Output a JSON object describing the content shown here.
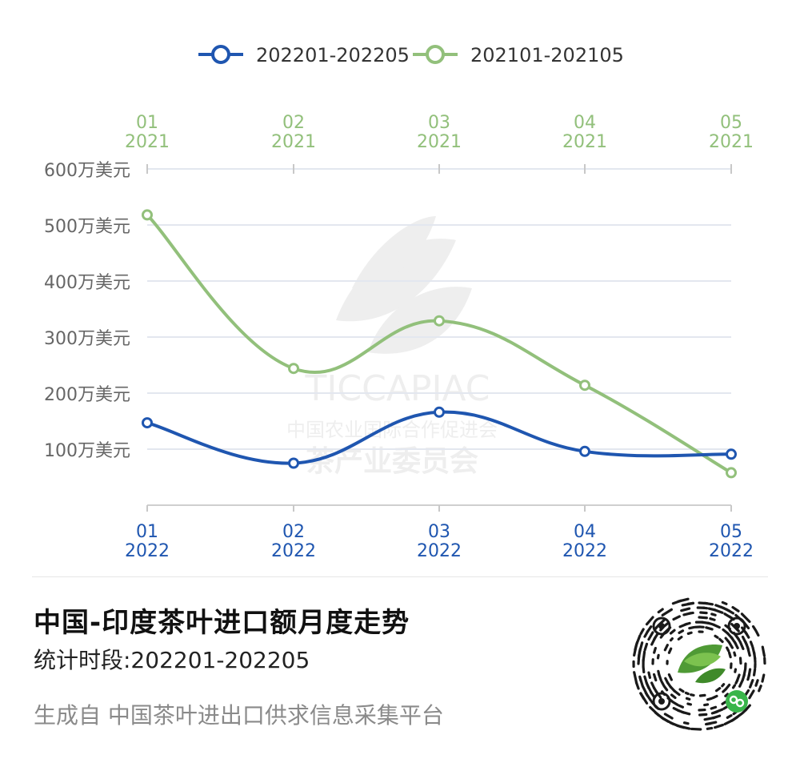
{
  "chart_data": {
    "type": "line",
    "title": "中国-印度茶叶进口额月度走势",
    "subtitle": "统计时段:202201-202205",
    "ylim": [
      0,
      600
    ],
    "y_ticks": [
      100,
      200,
      300,
      400,
      500,
      600
    ],
    "y_tick_labels": [
      "100万美元",
      "200万美元",
      "300万美元",
      "400万美元",
      "500万美元",
      "600万美元"
    ],
    "grid": true,
    "legend_position": "top-center",
    "series": [
      {
        "name": "202201-202205",
        "color": "#1f56b0",
        "axis": "bottom",
        "x_labels": [
          [
            "01",
            "2022"
          ],
          [
            "02",
            "2022"
          ],
          [
            "03",
            "2022"
          ],
          [
            "04",
            "2022"
          ],
          [
            "05",
            "2022"
          ]
        ],
        "values": [
          147,
          75,
          166,
          96,
          91
        ]
      },
      {
        "name": "202101-202105",
        "color": "#92c07b",
        "axis": "top",
        "x_labels": [
          [
            "01",
            "2021"
          ],
          [
            "02",
            "2021"
          ],
          [
            "03",
            "2021"
          ],
          [
            "04",
            "2021"
          ],
          [
            "05",
            "2021"
          ]
        ],
        "values": [
          518,
          244,
          329,
          214,
          58
        ]
      }
    ]
  },
  "footer": {
    "title": "中国-印度茶叶进口额月度走势",
    "subtitle": "统计时段:202201-202205",
    "source": "生成自 中国茶叶进出口供求信息采集平台"
  },
  "watermark": {
    "text": "TICCAPIAC",
    "line1": "中国农业国际合作促进会",
    "line2": "茶产业委员会"
  },
  "qr": {
    "icon": "mini-program-qr-code"
  }
}
